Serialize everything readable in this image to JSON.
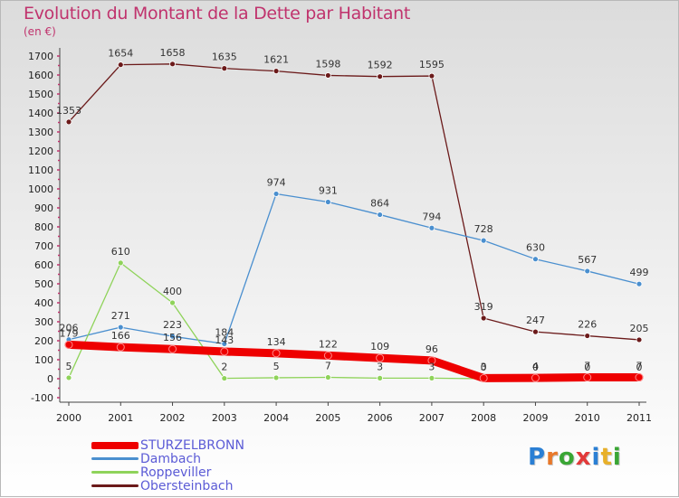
{
  "header": {
    "title": "Evolution du Montant de la Dette par Habitant",
    "subtitle": "(en €)"
  },
  "logo": {
    "text": "Proxiti",
    "colors": [
      "#2a7fd4",
      "#e8782a",
      "#3aa635",
      "#e23a3a",
      "#2a7fd4",
      "#e8b02a",
      "#3aa635"
    ]
  },
  "chart_data": {
    "type": "line",
    "title": "Evolution du Montant de la Dette par Habitant",
    "subtitle": "(en €)",
    "xlabel": "",
    "ylabel": "",
    "x": [
      "2000",
      "2001",
      "2002",
      "2003",
      "2004",
      "2005",
      "2006",
      "2007",
      "2008",
      "2009",
      "2010",
      "2011"
    ],
    "ylim": [
      -100,
      1700
    ],
    "yticks": [
      -100,
      0,
      100,
      200,
      300,
      400,
      500,
      600,
      700,
      800,
      900,
      1000,
      1100,
      1200,
      1300,
      1400,
      1500,
      1600,
      1700
    ],
    "grid": false,
    "legend_position": "bottom-left",
    "series": [
      {
        "name": "STURZELBRONN",
        "color": "#ee0000",
        "values": [
          179,
          166,
          156,
          143,
          134,
          122,
          109,
          96,
          3,
          4,
          7,
          7
        ],
        "labels": [
          "179",
          "166",
          "156",
          "143",
          "134",
          "122",
          "109",
          "96",
          "3",
          "4",
          "7",
          "7"
        ]
      },
      {
        "name": "Dambach",
        "color": "#4a8fcf",
        "values": [
          206,
          271,
          223,
          184,
          974,
          931,
          864,
          794,
          728,
          630,
          567,
          499
        ],
        "labels": [
          "206",
          "271",
          "223",
          "184",
          "974",
          "931",
          "864",
          "794",
          "728",
          "630",
          "567",
          "499"
        ]
      },
      {
        "name": "Roppeviller",
        "color": "#8fd35a",
        "values": [
          5,
          610,
          400,
          2,
          5,
          7,
          3,
          3,
          0,
          0,
          0,
          0
        ],
        "labels": [
          "5",
          "610",
          "400",
          "2",
          "5",
          "7",
          "3",
          "3",
          "0",
          "0",
          "0",
          "0"
        ]
      },
      {
        "name": "Obersteinbach",
        "color": "#6b1a1a",
        "values": [
          1353,
          1654,
          1658,
          1635,
          1621,
          1598,
          1592,
          1595,
          319,
          247,
          226,
          205
        ],
        "labels": [
          "1353",
          "1654",
          "1658",
          "1635",
          "1621",
          "1598",
          "1592",
          "1595",
          "319",
          "247",
          "226",
          "205"
        ]
      }
    ]
  }
}
